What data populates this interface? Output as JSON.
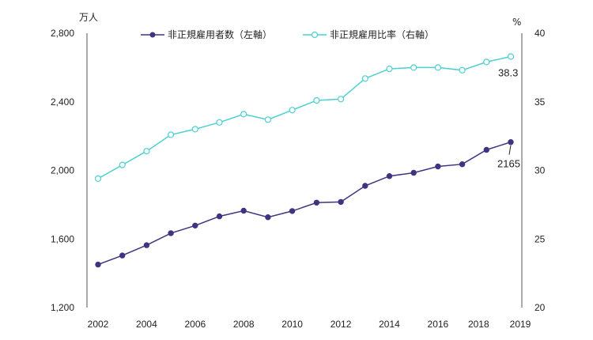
{
  "chart_data": {
    "type": "line",
    "x": [
      2002,
      2003,
      2004,
      2005,
      2006,
      2007,
      2008,
      2009,
      2010,
      2011,
      2012,
      2013,
      2014,
      2015,
      2016,
      2017,
      2018,
      2019
    ],
    "x_tick_labels": [
      "2002",
      "2004",
      "2006",
      "2008",
      "2010",
      "2012",
      "2014",
      "2016",
      "2018",
      "2019"
    ],
    "y_left": {
      "unit": "万人",
      "ylim": [
        1200,
        2800
      ],
      "ticks": [
        "1,200",
        "1,600",
        "2,000",
        "2,400",
        "2,800"
      ]
    },
    "y_right": {
      "unit": "%",
      "ylim": [
        20,
        40
      ],
      "ticks": [
        "20",
        "25",
        "30",
        "35",
        "40"
      ]
    },
    "series": [
      {
        "name": "非正規雇用者数（左軸）",
        "axis": "left",
        "color": "#3d3580",
        "marker": "filled-circle",
        "values": [
          1451,
          1504,
          1564,
          1634,
          1678,
          1732,
          1765,
          1727,
          1763,
          1812,
          1816,
          1910,
          1967,
          1986,
          2023,
          2036,
          2120,
          2165
        ],
        "end_label": "2165"
      },
      {
        "name": "非正規雇用比率（右軸）",
        "axis": "right",
        "color": "#4dd0d0",
        "marker": "hollow-circle",
        "values": [
          29.4,
          30.4,
          31.4,
          32.6,
          33.0,
          33.5,
          34.1,
          33.7,
          34.4,
          35.1,
          35.2,
          36.7,
          37.4,
          37.5,
          37.5,
          37.3,
          37.9,
          38.3
        ],
        "end_label": "38.3"
      }
    ],
    "legend_position": "top-center",
    "grid": false
  }
}
